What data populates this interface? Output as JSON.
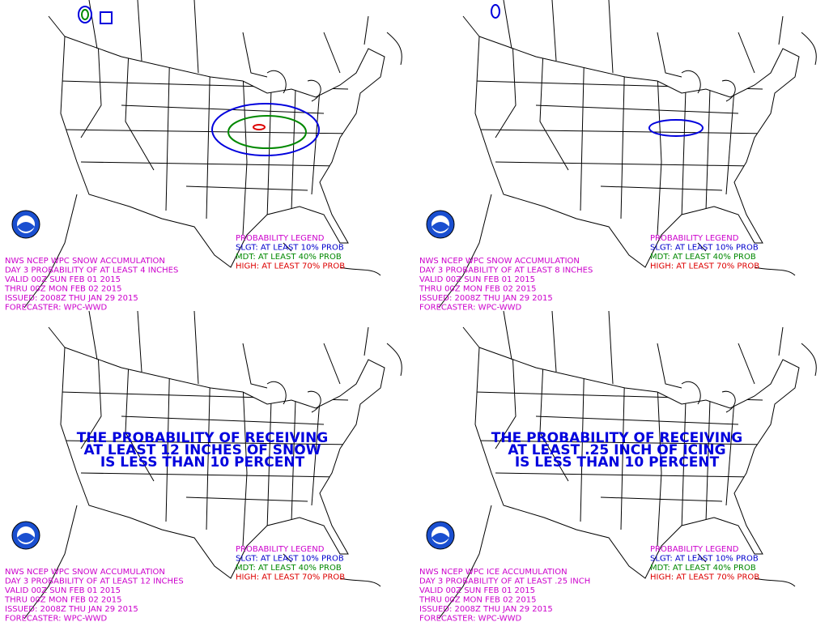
{
  "panels": [
    {
      "info": [
        "NWS NCEP WPC SNOW ACCUMULATION",
        "DAY 3 PROBABILITY OF AT LEAST 4 INCHES",
        "VALID 00Z SUN FEB 01 2015",
        "THRU 00Z MON FEB 02 2015",
        "ISSUED: 2008Z THU JAN 29 2015",
        "FORECASTER: WPC-WWD"
      ],
      "legend": [
        "PROBABILITY LEGEND",
        "SLGT: AT LEAST 10% PROB",
        "MDT: AT LEAST 40% PROB",
        "HIGH: AT LEAST 70% PROB"
      ]
    },
    {
      "info": [
        "NWS NCEP WPC SNOW ACCUMULATION",
        "DAY 3 PROBABILITY OF AT LEAST 8 INCHES",
        "VALID 00Z SUN FEB 01 2015",
        "THRU 00Z MON FEB 02 2015",
        "ISSUED: 2008Z THU JAN 29 2015",
        "FORECASTER: WPC-WWD"
      ],
      "legend": [
        "PROBABILITY LEGEND",
        "SLGT: AT LEAST 10% PROB",
        "MDT: AT LEAST 40% PROB",
        "HIGH: AT LEAST 70% PROB"
      ]
    },
    {
      "info": [
        "NWS NCEP WPC SNOW ACCUMULATION",
        "DAY 3 PROBABILITY OF AT LEAST 12 INCHES",
        "VALID 00Z SUN FEB 01 2015",
        "THRU 00Z MON FEB 02 2015",
        "ISSUED: 2008Z THU JAN 29 2015",
        "FORECASTER: WPC-WWD"
      ],
      "legend": [
        "PROBABILITY LEGEND",
        "SLGT: AT LEAST 10% PROB",
        "MDT: AT LEAST 40% PROB",
        "HIGH: AT LEAST 70% PROB"
      ],
      "message": [
        "THE PROBABILITY OF RECEIVING",
        "AT LEAST 12 INCHES OF SNOW",
        "IS LESS THAN 10 PERCENT"
      ]
    },
    {
      "info": [
        "NWS NCEP WPC ICE ACCUMULATION",
        "DAY 3 PROBABILITY OF AT LEAST .25 INCH",
        "VALID 00Z SUN FEB 01 2015",
        "THRU 00Z MON FEB 02 2015",
        "ISSUED: 2008Z THU JAN 29 2015",
        "FORECASTER: WPC-WWD"
      ],
      "legend": [
        "PROBABILITY LEGEND",
        "SLGT: AT LEAST 10% PROB",
        "MDT: AT LEAST 40% PROB",
        "HIGH: AT LEAST 70% PROB"
      ],
      "message": [
        "THE PROBABILITY OF RECEIVING",
        "AT LEAST .25 INCH OF ICING",
        "IS LESS THAN 10 PERCENT"
      ]
    }
  ]
}
